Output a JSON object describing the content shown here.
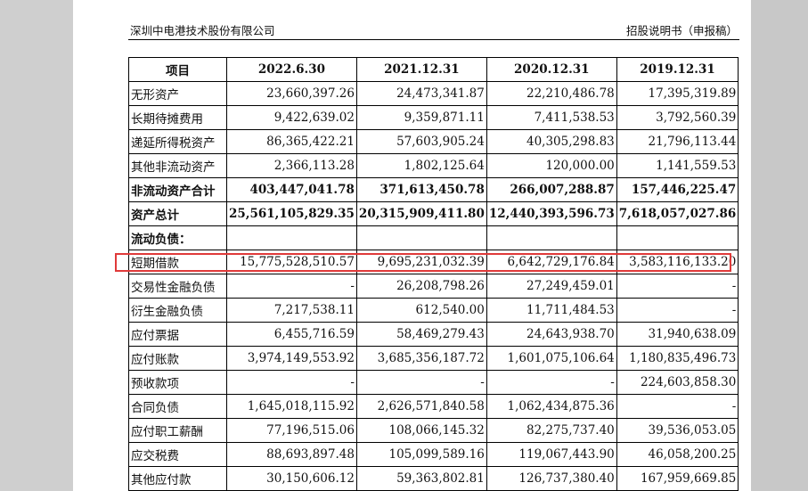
{
  "header": {
    "company": "深圳中电港技术股份有限公司",
    "doc_title": "招股说明书（申报稿）"
  },
  "table": {
    "columns": [
      "项目",
      "2022.6.30",
      "2021.12.31",
      "2020.12.31",
      "2019.12.31"
    ],
    "rows": [
      {
        "label": "无形资产",
        "values": [
          "23,660,397.26",
          "24,473,341.87",
          "22,210,486.78",
          "17,395,319.89"
        ],
        "bold": false
      },
      {
        "label": "长期待摊费用",
        "values": [
          "9,422,639.02",
          "9,359,871.11",
          "7,411,538.53",
          "3,792,560.39"
        ],
        "bold": false
      },
      {
        "label": "递延所得税资产",
        "values": [
          "86,365,422.21",
          "57,603,905.24",
          "40,305,298.83",
          "21,796,113.44"
        ],
        "bold": false
      },
      {
        "label": "其他非流动资产",
        "values": [
          "2,366,113.28",
          "1,802,125.64",
          "120,000.00",
          "1,141,559.53"
        ],
        "bold": false
      },
      {
        "label": "非流动资产合计",
        "values": [
          "403,447,041.78",
          "371,613,450.78",
          "266,007,288.87",
          "157,446,225.47"
        ],
        "bold": true
      },
      {
        "label": "资产总计",
        "values": [
          "25,561,105,829.35",
          "20,315,909,411.80",
          "12,440,393,596.73",
          "7,618,057,027.86"
        ],
        "bold": true
      },
      {
        "label": "流动负债：",
        "values": [
          "",
          "",
          "",
          ""
        ],
        "bold": true
      },
      {
        "label": "短期借款",
        "values": [
          "15,775,528,510.57",
          "9,695,231,032.39",
          "6,642,729,176.84",
          "3,583,116,133.20"
        ],
        "bold": false
      },
      {
        "label": "交易性金融负债",
        "values": [
          "-",
          "26,208,798.26",
          "27,249,459.01",
          "-"
        ],
        "bold": false
      },
      {
        "label": "衍生金融负债",
        "values": [
          "7,217,538.11",
          "612,540.00",
          "11,711,484.53",
          "-"
        ],
        "bold": false
      },
      {
        "label": "应付票据",
        "values": [
          "6,455,716.59",
          "58,469,279.43",
          "24,643,938.70",
          "31,940,638.09"
        ],
        "bold": false
      },
      {
        "label": "应付账款",
        "values": [
          "3,974,149,553.92",
          "3,685,356,187.72",
          "1,601,075,106.64",
          "1,180,835,496.73"
        ],
        "bold": false
      },
      {
        "label": "预收款项",
        "values": [
          "-",
          "-",
          "-",
          "224,603,858.30"
        ],
        "bold": false
      },
      {
        "label": "合同负债",
        "values": [
          "1,645,018,115.92",
          "2,626,571,840.58",
          "1,062,434,875.36",
          "-"
        ],
        "bold": false
      },
      {
        "label": "应付职工薪酬",
        "values": [
          "77,196,515.06",
          "108,066,145.32",
          "82,275,737.40",
          "39,536,053.05"
        ],
        "bold": false
      },
      {
        "label": "应交税费",
        "values": [
          "88,693,897.48",
          "105,099,589.16",
          "119,067,443.90",
          "46,058,200.25"
        ],
        "bold": false
      },
      {
        "label": "其他应付款",
        "values": [
          "30,150,606.12",
          "59,363,802.81",
          "126,737,380.40",
          "167,959,669.85"
        ],
        "bold": false
      }
    ]
  },
  "highlight_color": "#e03a3a"
}
